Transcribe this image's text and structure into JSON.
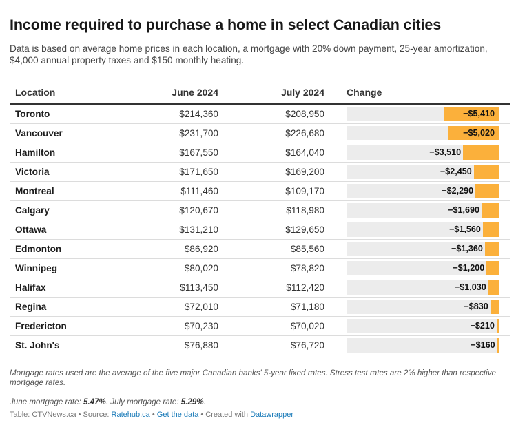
{
  "header": {
    "title": "Income required to purchase a home in select Canadian cities",
    "subtitle": "Data is based on average home prices in each location, a mortgage with 20% down payment, 25-year amortization, $4,000 annual property taxes and $150 monthly heating."
  },
  "chart_data": {
    "type": "table",
    "columns": [
      "Location",
      "June 2024",
      "July 2024",
      "Change"
    ],
    "max_change_abs": 5410,
    "rows": [
      {
        "location": "Toronto",
        "june": "$214,360",
        "july": "$208,950",
        "change": -5410,
        "change_label": "−$5,410"
      },
      {
        "location": "Vancouver",
        "june": "$231,700",
        "july": "$226,680",
        "change": -5020,
        "change_label": "−$5,020"
      },
      {
        "location": "Hamilton",
        "june": "$167,550",
        "july": "$164,040",
        "change": -3510,
        "change_label": "−$3,510"
      },
      {
        "location": "Victoria",
        "june": "$171,650",
        "july": "$169,200",
        "change": -2450,
        "change_label": "−$2,450"
      },
      {
        "location": "Montreal",
        "june": "$111,460",
        "july": "$109,170",
        "change": -2290,
        "change_label": "−$2,290"
      },
      {
        "location": "Calgary",
        "june": "$120,670",
        "july": "$118,980",
        "change": -1690,
        "change_label": "−$1,690"
      },
      {
        "location": "Ottawa",
        "june": "$131,210",
        "july": "$129,650",
        "change": -1560,
        "change_label": "−$1,560"
      },
      {
        "location": "Edmonton",
        "june": "$86,920",
        "july": "$85,560",
        "change": -1360,
        "change_label": "−$1,360"
      },
      {
        "location": "Winnipeg",
        "june": "$80,020",
        "july": "$78,820",
        "change": -1200,
        "change_label": "−$1,200"
      },
      {
        "location": "Halifax",
        "june": "$113,450",
        "july": "$112,420",
        "change": -1030,
        "change_label": "−$1,030"
      },
      {
        "location": "Regina",
        "june": "$72,010",
        "july": "$71,180",
        "change": -830,
        "change_label": "−$830"
      },
      {
        "location": "Fredericton",
        "june": "$70,230",
        "july": "$70,020",
        "change": -210,
        "change_label": "−$210"
      },
      {
        "location": "St. John's",
        "june": "$76,880",
        "july": "$76,720",
        "change": -160,
        "change_label": "−$160"
      }
    ],
    "bar_color": "#fbb03b",
    "track_color": "#ececec"
  },
  "footer": {
    "note": "Mortgage rates used are the average of the five major Canadian banks' 5-year fixed rates. Stress test rates are 2% higher than respective mortgage rates.",
    "june_rate_label": "June mortgage rate: ",
    "june_rate": "5.47%",
    "july_rate_label": ". July mortgage rate: ",
    "july_rate": "5.29%",
    "rates_end": ".",
    "table_credit": "Table: CTVNews.ca",
    "sep1": " • Source: ",
    "source_link": "Ratehub.ca",
    "sep2": " • ",
    "get_data_link": "Get the data",
    "sep3": " • Created with ",
    "datawrapper_link": "Datawrapper"
  }
}
